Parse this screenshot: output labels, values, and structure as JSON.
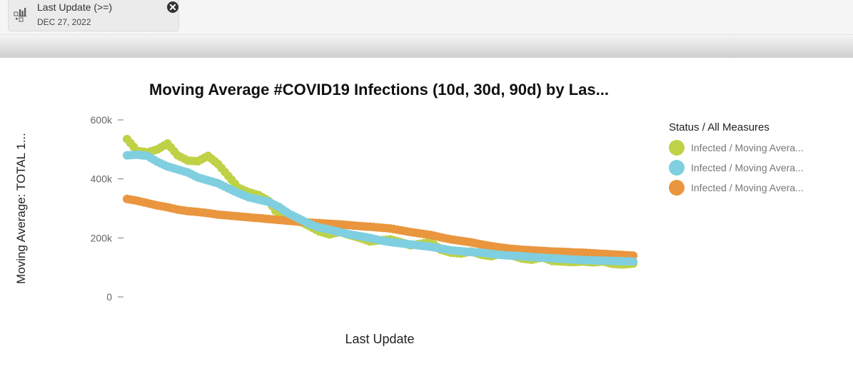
{
  "filter": {
    "title": "Last Update (>=)",
    "value": "DEC 27, 2022"
  },
  "chart_data": {
    "type": "scatter",
    "title": "Moving Average #COVID19 Infections (10d, 30d, 90d) by Las...",
    "xlabel": "Last Update",
    "ylabel": "Moving Average: TOTAL 1...",
    "ylim": [
      0,
      600000
    ],
    "yticks": [
      0,
      200000,
      400000,
      600000
    ],
    "ytick_labels": [
      "0",
      "200k",
      "400k",
      "600k"
    ],
    "x_ticks_shown": false,
    "grid": false,
    "legend_position": "right",
    "legend_title": "Status / All Measures",
    "x_index_range": [
      0,
      100
    ],
    "series": [
      {
        "name": "Infected / Moving Avera...",
        "color": "#bfd146",
        "x": [
          0,
          2,
          4,
          6,
          8,
          10,
          12,
          14,
          16,
          18,
          20,
          22,
          24,
          26,
          28,
          30,
          32,
          34,
          36,
          38,
          40,
          42,
          44,
          46,
          48,
          50,
          52,
          54,
          56,
          58,
          60,
          62,
          64,
          66,
          68,
          70,
          72,
          74,
          76,
          78,
          80,
          82,
          84,
          86,
          88,
          90,
          92,
          94,
          96,
          98,
          100
        ],
        "y": [
          535000,
          495000,
          490000,
          500000,
          520000,
          480000,
          462000,
          460000,
          478000,
          450000,
          410000,
          370000,
          355000,
          345000,
          325000,
          275000,
          262000,
          258000,
          240000,
          222000,
          212000,
          220000,
          210000,
          200000,
          188000,
          192000,
          195000,
          186000,
          175000,
          180000,
          186000,
          160000,
          150000,
          147000,
          154000,
          143000,
          138000,
          148000,
          141000,
          130000,
          126000,
          134000,
          122000,
          120000,
          118000,
          120000,
          117000,
          120000,
          112000,
          110000,
          113000
        ]
      },
      {
        "name": "Infected / Moving Avera...",
        "color": "#7fcfe0",
        "x": [
          0,
          2,
          4,
          6,
          8,
          10,
          12,
          14,
          16,
          18,
          20,
          22,
          24,
          26,
          28,
          30,
          32,
          34,
          36,
          38,
          40,
          42,
          44,
          46,
          48,
          50,
          52,
          54,
          56,
          58,
          60,
          62,
          64,
          66,
          68,
          70,
          72,
          74,
          76,
          78,
          80,
          82,
          84,
          86,
          88,
          90,
          92,
          94,
          96,
          98,
          100
        ],
        "y": [
          480000,
          482000,
          478000,
          458000,
          442000,
          432000,
          422000,
          405000,
          395000,
          385000,
          368000,
          352000,
          338000,
          330000,
          322000,
          305000,
          282000,
          265000,
          248000,
          235000,
          228000,
          220000,
          212000,
          206000,
          200000,
          192000,
          186000,
          182000,
          178000,
          174000,
          170000,
          164000,
          158000,
          155000,
          152000,
          150000,
          146000,
          142000,
          140000,
          138000,
          135000,
          133000,
          131000,
          129000,
          127000,
          125000,
          124000,
          123000,
          122000,
          121000,
          120000
        ]
      },
      {
        "name": "Infected / Moving Avera...",
        "color": "#e9963e",
        "x": [
          0,
          2,
          4,
          6,
          8,
          10,
          12,
          14,
          16,
          18,
          20,
          22,
          24,
          26,
          28,
          30,
          32,
          34,
          36,
          38,
          40,
          42,
          44,
          46,
          48,
          50,
          52,
          54,
          56,
          58,
          60,
          62,
          64,
          66,
          68,
          70,
          72,
          74,
          76,
          78,
          80,
          82,
          84,
          86,
          88,
          90,
          92,
          94,
          96,
          98,
          100
        ],
        "y": [
          332000,
          326000,
          318000,
          310000,
          304000,
          296000,
          291000,
          288000,
          284000,
          279000,
          276000,
          273000,
          270000,
          267000,
          264000,
          261000,
          258000,
          255000,
          252000,
          250000,
          248000,
          246000,
          243000,
          240000,
          238000,
          235000,
          232000,
          226000,
          220000,
          215000,
          210000,
          202000,
          195000,
          190000,
          185000,
          178000,
          172000,
          167000,
          163000,
          160000,
          158000,
          156000,
          154000,
          153000,
          151000,
          150000,
          148000,
          146000,
          144000,
          142000,
          140000
        ]
      }
    ]
  }
}
